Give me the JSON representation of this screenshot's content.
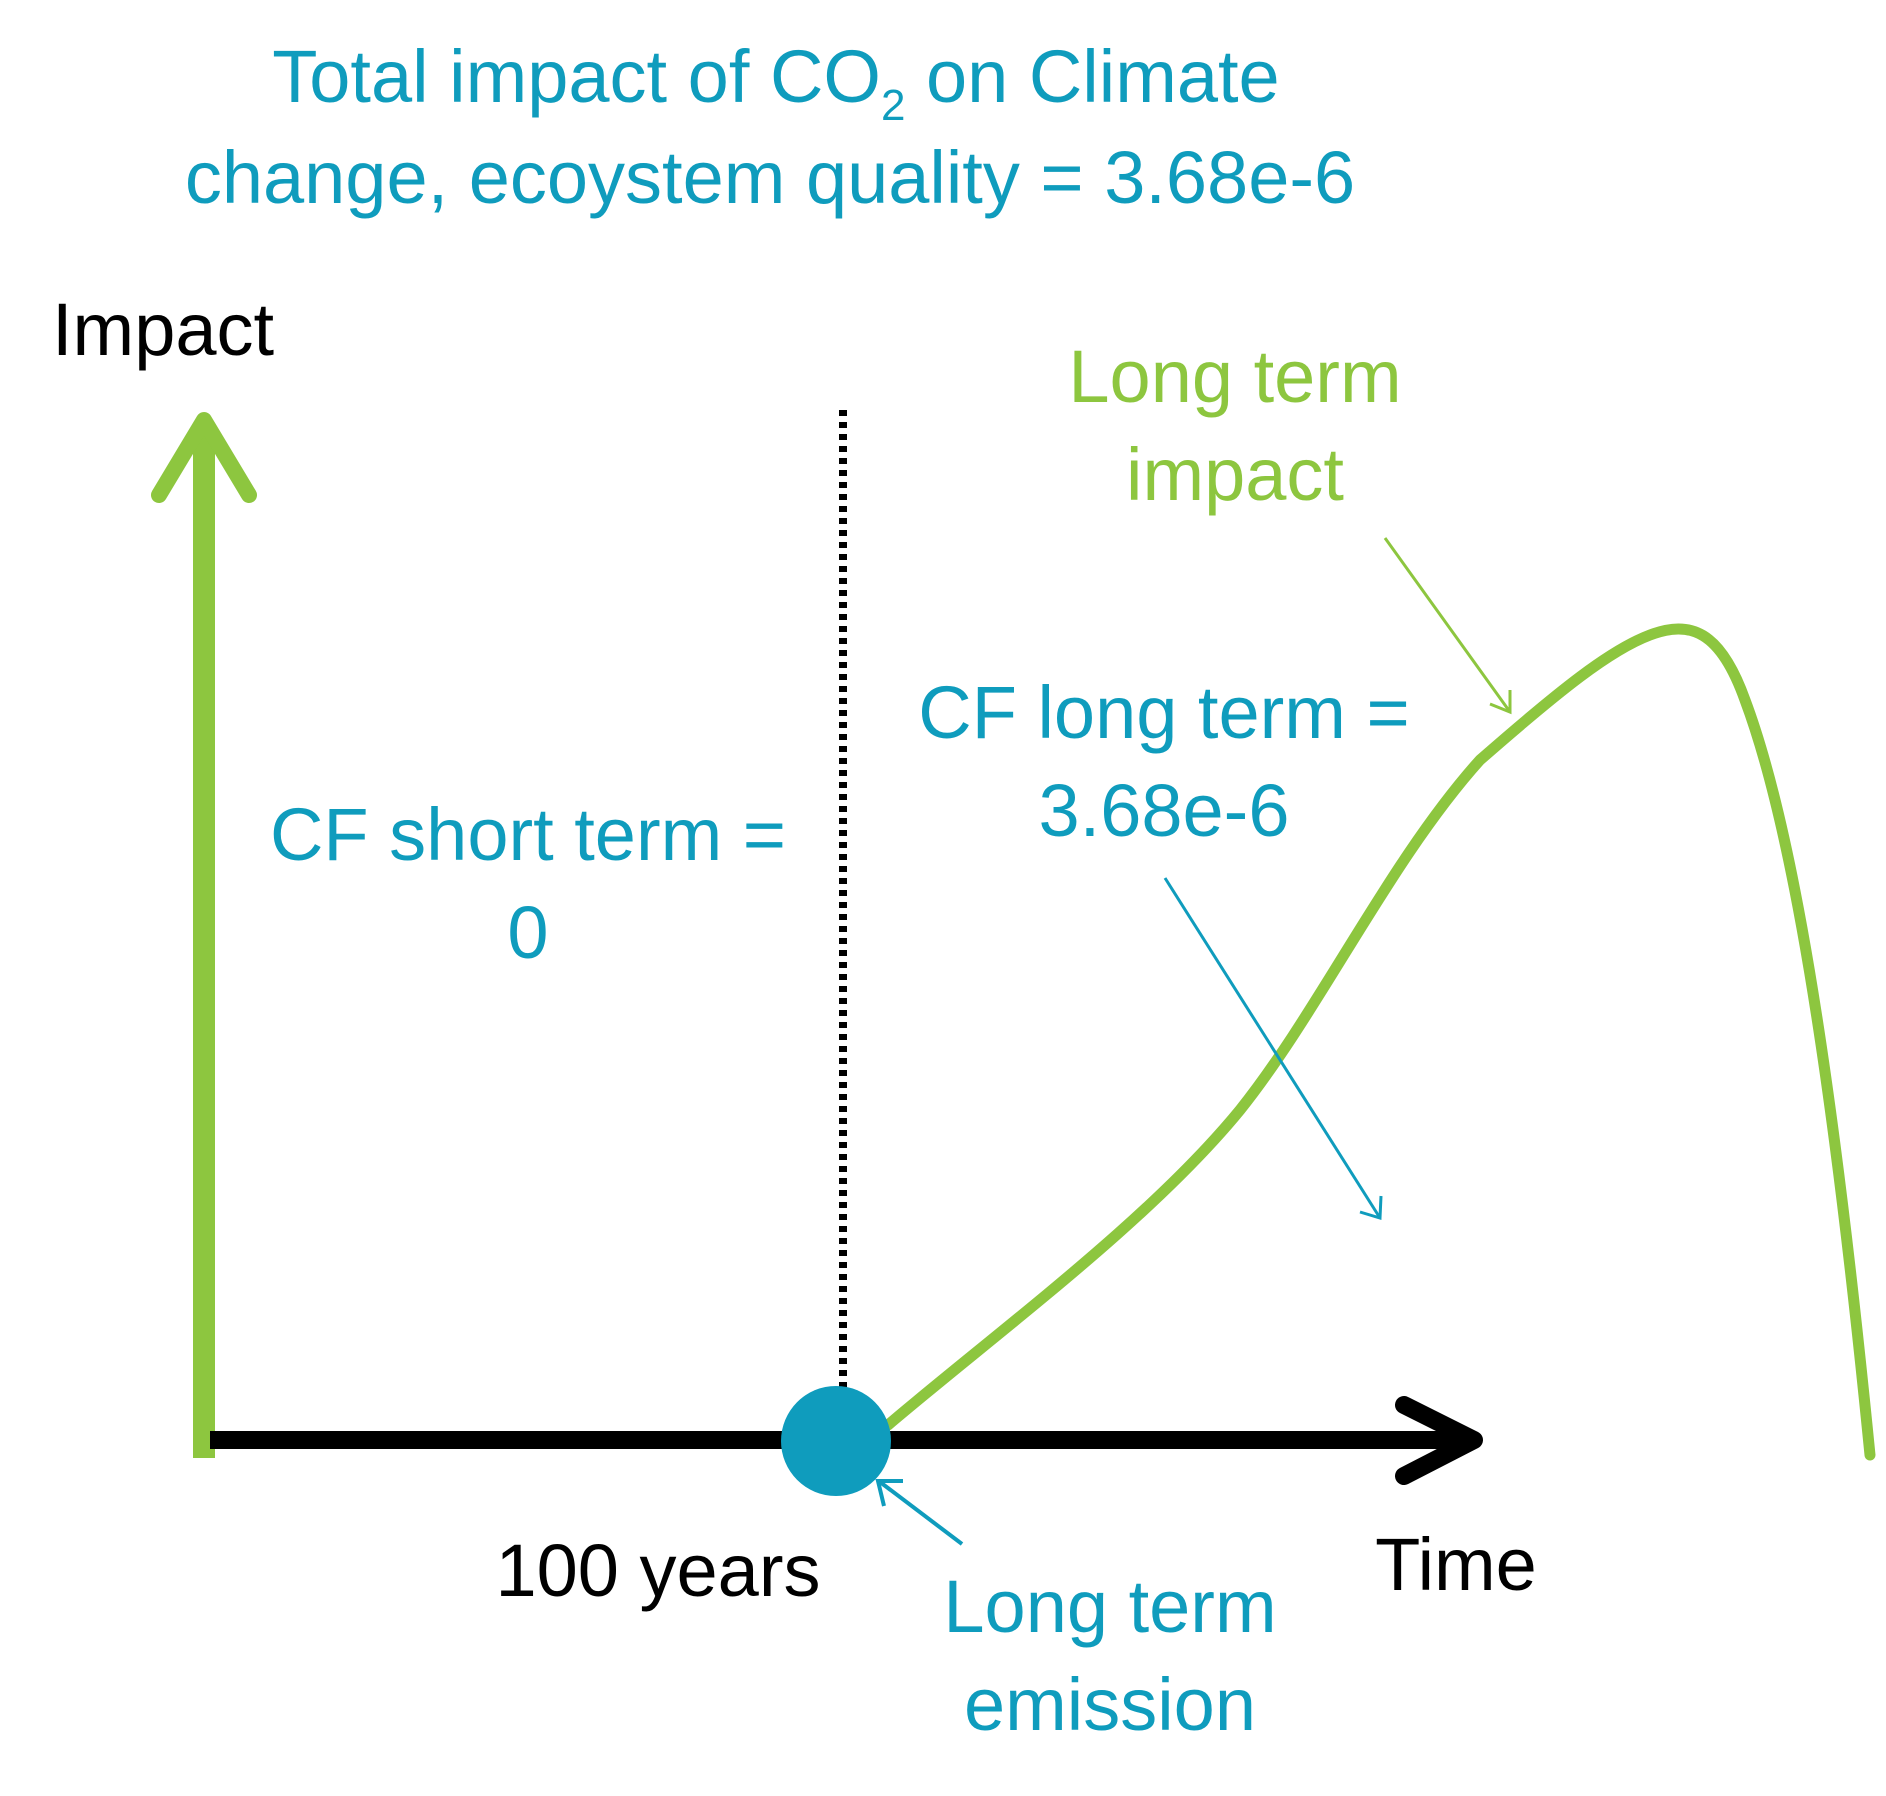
{
  "title": {
    "line1_before": "Total impact of CO",
    "line1_sub": "2",
    "line1_after": " on Climate",
    "line2": "change, ecoystem quality = 3.68e-6"
  },
  "axes": {
    "y_label": "Impact",
    "x_label": "Time",
    "x_marker_label": "100 years"
  },
  "annotations": {
    "short_term": {
      "line1": "CF short term =",
      "line2": "0"
    },
    "long_term_cf": {
      "line1": "CF long term =",
      "line2": "3.68e-6"
    },
    "long_term_impact": {
      "line1": "Long term",
      "line2": "impact"
    },
    "long_term_emission": {
      "line1": "Long term",
      "line2": "emission"
    }
  },
  "colors": {
    "teal": "#0f9cbd",
    "green": "#8dc63f",
    "black": "#000000"
  }
}
